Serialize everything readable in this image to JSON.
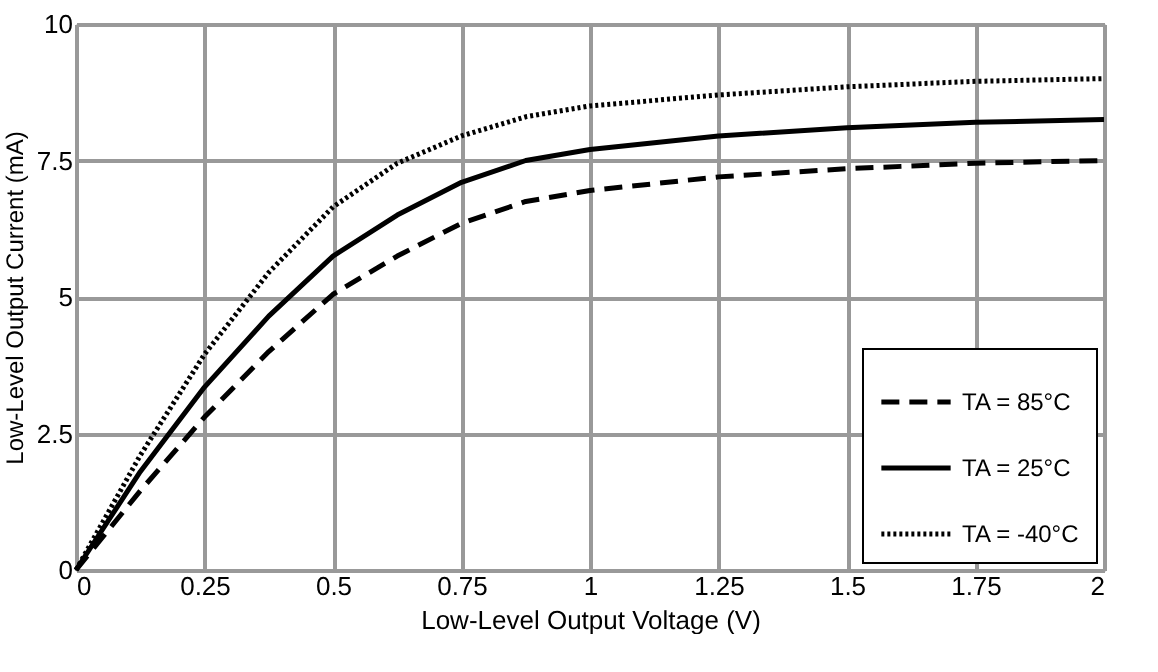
{
  "chart_data": {
    "type": "line",
    "xlabel": "Low-Level Output Voltage (V)",
    "ylabel": "Low-Level Output Current (mA)",
    "x": [
      0,
      0.125,
      0.25,
      0.375,
      0.5,
      0.625,
      0.75,
      0.875,
      1,
      1.25,
      1.5,
      1.75,
      2
    ],
    "series": [
      {
        "name": "TA = 85°C",
        "color": "#000000",
        "line_style": "dashed",
        "values": [
          0,
          1.45,
          2.8,
          4.0,
          5.05,
          5.75,
          6.35,
          6.75,
          6.95,
          7.2,
          7.35,
          7.45,
          7.5
        ]
      },
      {
        "name": "TA = 25°C",
        "color": "#000000",
        "line_style": "solid",
        "values": [
          0,
          1.8,
          3.35,
          4.65,
          5.75,
          6.5,
          7.1,
          7.5,
          7.7,
          7.95,
          8.1,
          8.2,
          8.25
        ]
      },
      {
        "name": "TA = -40°C",
        "color": "#000000",
        "line_style": "dotted",
        "values": [
          0,
          2.1,
          3.95,
          5.45,
          6.65,
          7.45,
          7.95,
          8.3,
          8.5,
          8.7,
          8.85,
          8.95,
          9.0
        ]
      }
    ],
    "xlim": [
      0,
      2
    ],
    "xticks": [
      0,
      0.25,
      0.5,
      0.75,
      1,
      1.25,
      1.5,
      1.75,
      2
    ],
    "ylim": [
      0,
      10
    ],
    "yticks": [
      0,
      2.5,
      5,
      7.5,
      10
    ],
    "grid": true,
    "legend": "bottom right",
    "marker": "none"
  }
}
